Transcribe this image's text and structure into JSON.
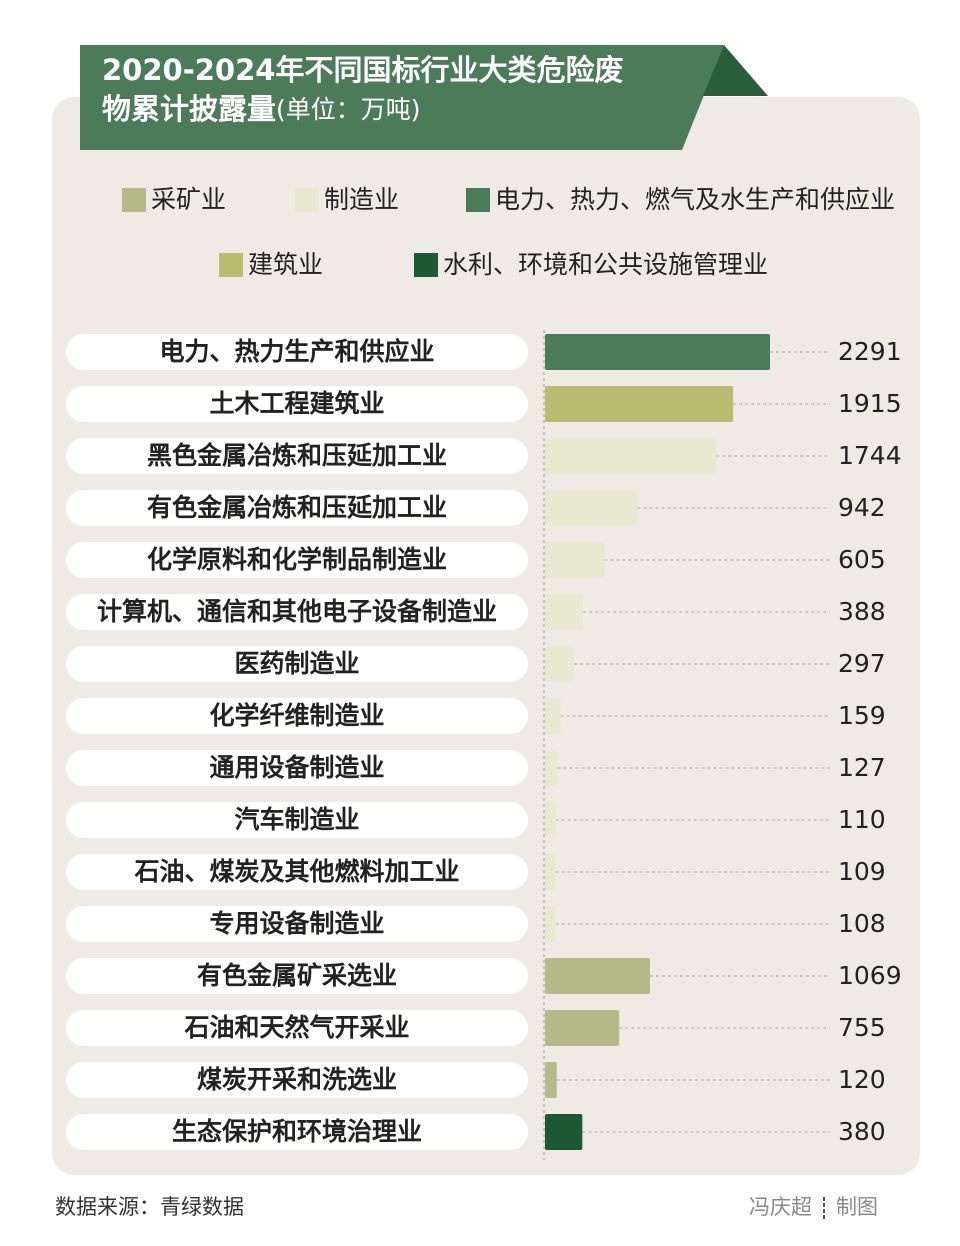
{
  "chart_data": {
    "type": "bar",
    "orientation": "horizontal",
    "title": [
      "2020-2024年不同国标行业大类危险废",
      "物累计披露量"
    ],
    "subtitle": "(单位：万吨)",
    "categories": [
      "电力、热力生产和供应业",
      "土木工程建筑业",
      "黑色金属冶炼和压延加工业",
      "有色金属冶炼和压延加工业",
      "化学原料和化学制品制造业",
      "计算机、通信和其他电子设备制造业",
      "医药制造业",
      "化学纤维制造业",
      "通用设备制造业",
      "汽车制造业",
      "石油、煤炭及其他燃料加工业",
      "专用设备制造业",
      "有色金属矿采选业",
      "石油和天然气开采业",
      "煤炭开采和洗选业",
      "生态保护和环境治理业"
    ],
    "series": [
      {
        "name": "采矿业",
        "color": "#b6b98a",
        "values": [
          null,
          null,
          null,
          null,
          null,
          null,
          null,
          null,
          null,
          null,
          null,
          null,
          1069,
          755,
          120,
          null
        ]
      },
      {
        "name": "制造业",
        "color": "#e8e9d0",
        "values": [
          null,
          null,
          1744,
          942,
          605,
          388,
          297,
          159,
          127,
          110,
          109,
          108,
          null,
          null,
          null,
          null
        ]
      },
      {
        "name": "电力、热力、燃气及水生产和供应业",
        "color": "#4b7b59",
        "values": [
          2291,
          null,
          null,
          null,
          null,
          null,
          null,
          null,
          null,
          null,
          null,
          null,
          null,
          null,
          null,
          null
        ]
      },
      {
        "name": "建筑业",
        "color": "#b8bd6f",
        "values": [
          null,
          1915,
          null,
          null,
          null,
          null,
          null,
          null,
          null,
          null,
          null,
          null,
          null,
          null,
          null,
          null
        ]
      },
      {
        "name": "水利、环境和公共设施管理业",
        "color": "#1d5935",
        "values": [
          null,
          null,
          null,
          null,
          null,
          null,
          null,
          null,
          null,
          null,
          null,
          null,
          null,
          null,
          null,
          380
        ]
      }
    ],
    "source": "数据来源：青绿数据",
    "credit": [
      "冯庆超",
      "制图"
    ]
  }
}
